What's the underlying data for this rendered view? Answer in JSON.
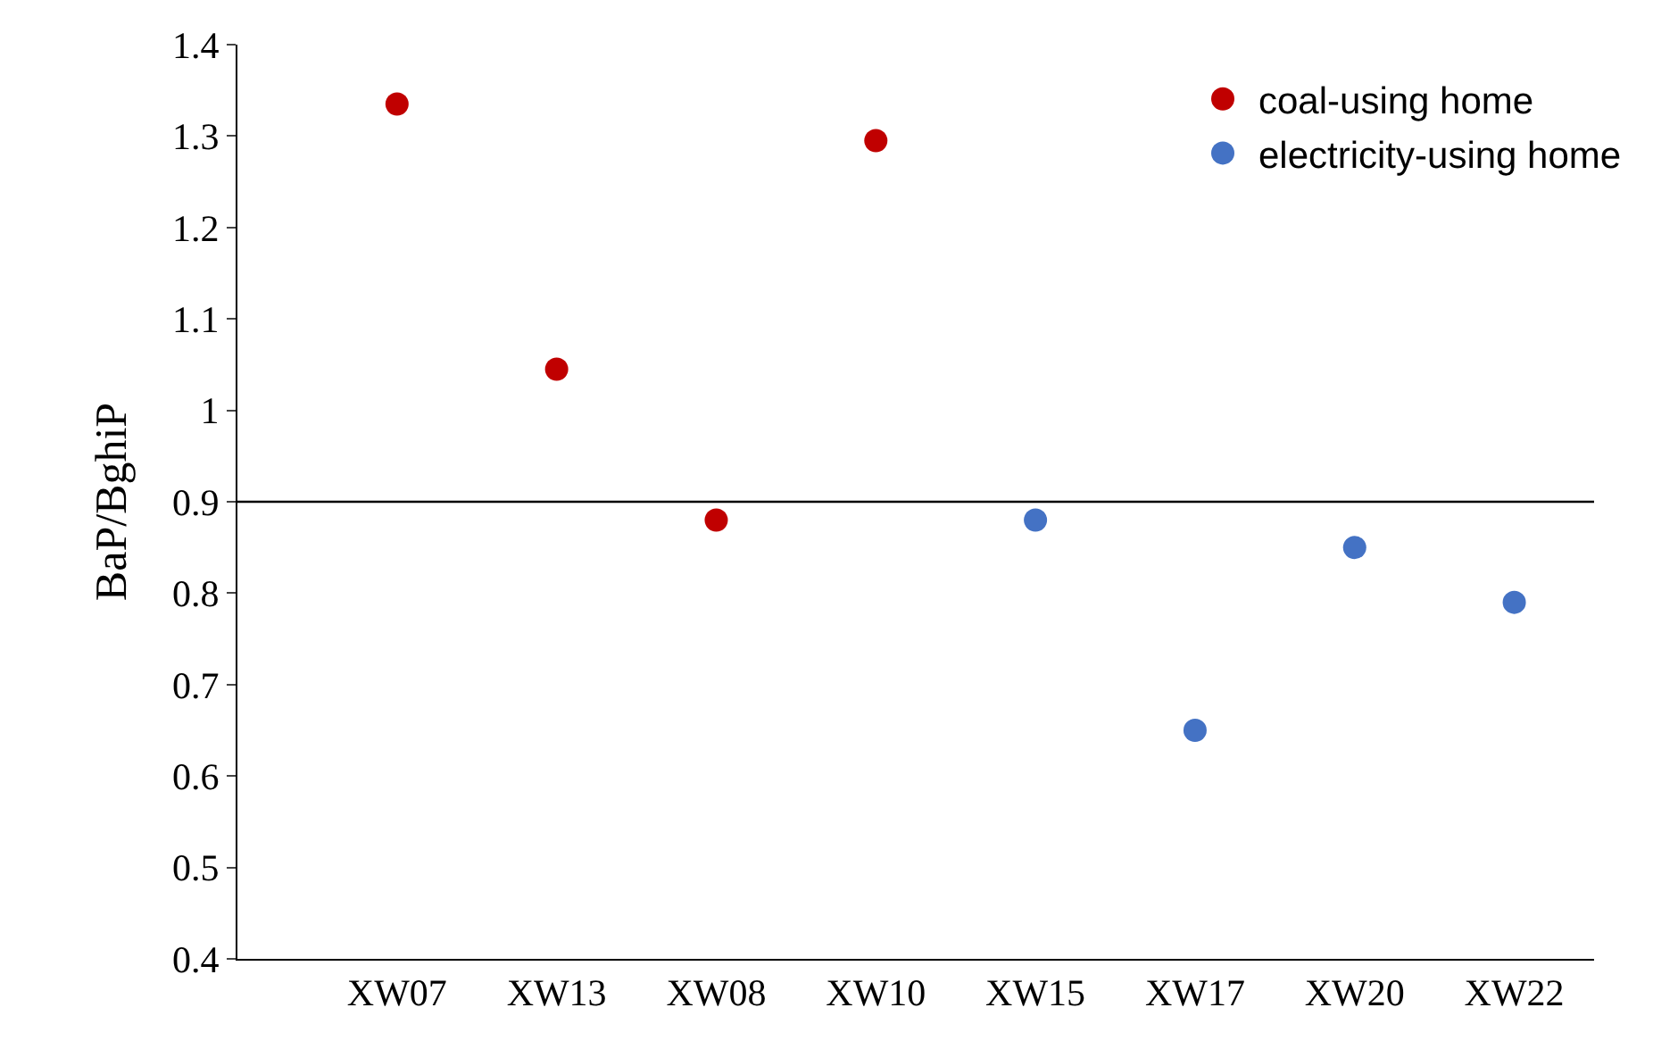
{
  "chart_data": {
    "type": "scatter",
    "ylabel": "BaP/BghiP",
    "categories": [
      "XW07",
      "XW13",
      "XW08",
      "XW10",
      "XW15",
      "XW17",
      "XW20",
      "XW22"
    ],
    "series": [
      {
        "name": "coal-using home",
        "color": "#c00000",
        "values": [
          1.335,
          1.045,
          0.88,
          1.295,
          null,
          null,
          null,
          null
        ]
      },
      {
        "name": "electricity-using home",
        "color": "#4472c4",
        "values": [
          null,
          null,
          null,
          null,
          0.88,
          0.65,
          0.85,
          0.79
        ]
      }
    ],
    "ylim": [
      0.4,
      1.4
    ],
    "yticks": [
      0.4,
      0.5,
      0.6,
      0.7,
      0.8,
      0.9,
      1,
      1.1,
      1.2,
      1.3,
      1.4
    ],
    "ref_lines": [
      {
        "axis": "y",
        "value": 0.9,
        "color": "#000000",
        "line_style": "solid"
      }
    ],
    "legend": "top right",
    "marker": "circle"
  }
}
